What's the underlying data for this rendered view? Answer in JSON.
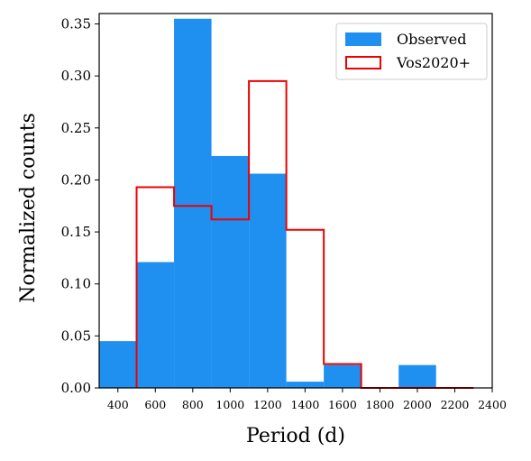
{
  "chart_data": {
    "type": "histogram",
    "xlabel": "Period (d)",
    "ylabel": "Normalized counts",
    "xlim": [
      300,
      2400
    ],
    "ylim": [
      0,
      0.36
    ],
    "xticks": [
      400,
      600,
      800,
      1000,
      1200,
      1400,
      1600,
      1800,
      2000,
      2200,
      2400
    ],
    "yticks": [
      0.0,
      0.05,
      0.1,
      0.15,
      0.2,
      0.25,
      0.3,
      0.35
    ],
    "ytick_labels": [
      "0.00",
      "0.05",
      "0.10",
      "0.15",
      "0.20",
      "0.25",
      "0.30",
      "0.35"
    ],
    "legend_position": "top-right",
    "series": [
      {
        "name": "Observed",
        "style": "filled",
        "color": "#1f8ff0",
        "bins": [
          {
            "x0": 300,
            "x1": 500,
            "value": 0.045
          },
          {
            "x0": 500,
            "x1": 700,
            "value": 0.121
          },
          {
            "x0": 700,
            "x1": 900,
            "value": 0.355
          },
          {
            "x0": 900,
            "x1": 1100,
            "value": 0.223
          },
          {
            "x0": 1100,
            "x1": 1300,
            "value": 0.206
          },
          {
            "x0": 1300,
            "x1": 1500,
            "value": 0.006
          },
          {
            "x0": 1500,
            "x1": 1700,
            "value": 0.022
          },
          {
            "x0": 1700,
            "x1": 1900,
            "value": 0.0
          },
          {
            "x0": 1900,
            "x1": 2100,
            "value": 0.022
          }
        ]
      },
      {
        "name": "Vos2020+",
        "style": "step",
        "color": "#ee0000",
        "bins": [
          {
            "x0": 500,
            "x1": 700,
            "value": 0.193
          },
          {
            "x0": 700,
            "x1": 900,
            "value": 0.175
          },
          {
            "x0": 900,
            "x1": 1100,
            "value": 0.162
          },
          {
            "x0": 1100,
            "x1": 1300,
            "value": 0.295
          },
          {
            "x0": 1300,
            "x1": 1500,
            "value": 0.152
          },
          {
            "x0": 1500,
            "x1": 1700,
            "value": 0.023
          },
          {
            "x0": 1700,
            "x1": 1900,
            "value": 0.0
          },
          {
            "x0": 1900,
            "x1": 2100,
            "value": 0.0
          },
          {
            "x0": 2100,
            "x1": 2300,
            "value": 0.0
          }
        ]
      }
    ]
  }
}
